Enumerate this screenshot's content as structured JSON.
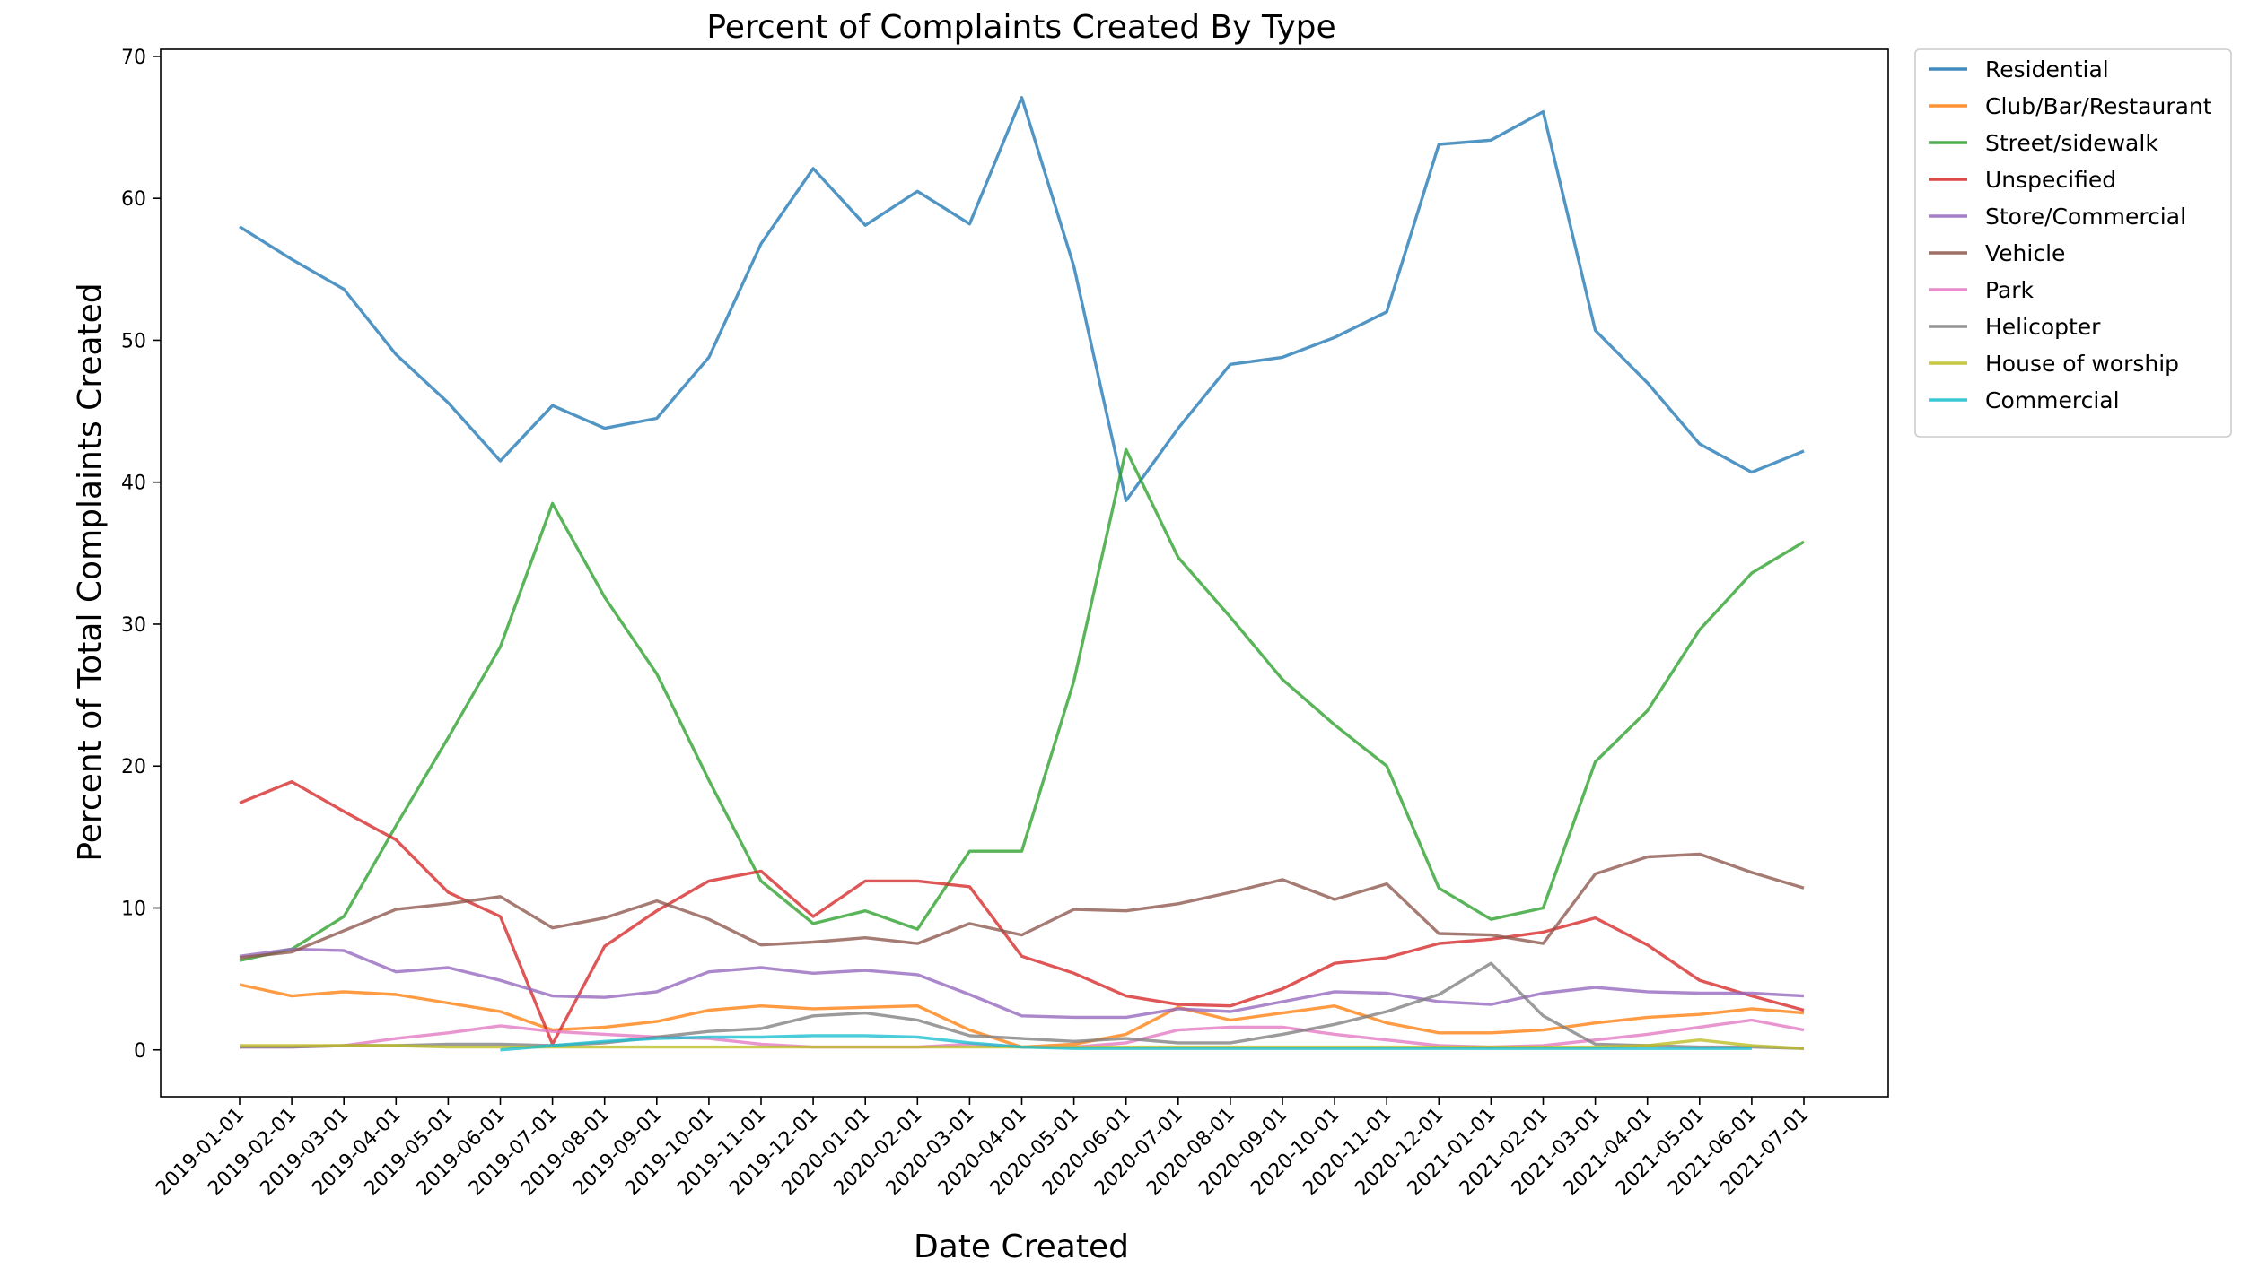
{
  "chart_data": {
    "type": "line",
    "title": "Percent of Complaints Created By Type",
    "xlabel": "Date Created",
    "ylabel": "Percent of Total Complaints Created",
    "ylim": [
      -3.3,
      70.5
    ],
    "yticks": [
      0,
      10,
      20,
      30,
      40,
      50,
      60,
      70
    ],
    "x": [
      "2019-01-01",
      "2019-02-01",
      "2019-03-01",
      "2019-04-01",
      "2019-05-01",
      "2019-06-01",
      "2019-07-01",
      "2019-08-01",
      "2019-09-01",
      "2019-10-01",
      "2019-11-01",
      "2019-12-01",
      "2020-01-01",
      "2020-02-01",
      "2020-03-01",
      "2020-04-01",
      "2020-05-01",
      "2020-06-01",
      "2020-07-01",
      "2020-08-01",
      "2020-09-01",
      "2020-10-01",
      "2020-11-01",
      "2020-12-01",
      "2021-01-01",
      "2021-02-01",
      "2021-03-01",
      "2021-04-01",
      "2021-05-01",
      "2021-06-01",
      "2021-07-01"
    ],
    "grid": false,
    "legend_position": "outside-top-right",
    "series": [
      {
        "name": "Residential",
        "color": "#1f77b4",
        "values": [
          58.0,
          55.7,
          53.6,
          49.0,
          45.6,
          41.5,
          45.4,
          43.8,
          44.5,
          48.8,
          56.8,
          62.1,
          58.1,
          60.5,
          58.2,
          67.1,
          55.2,
          38.7,
          43.8,
          48.3,
          48.8,
          50.2,
          52.0,
          63.8,
          64.1,
          66.1,
          50.7,
          47.0,
          42.7,
          40.7,
          42.2
        ]
      },
      {
        "name": "Club/Bar/Restaurant",
        "color": "#ff7f0e",
        "values": [
          4.6,
          3.8,
          4.1,
          3.9,
          3.3,
          2.7,
          1.4,
          1.6,
          2.0,
          2.8,
          3.1,
          2.9,
          3.0,
          3.1,
          1.4,
          0.2,
          0.4,
          1.1,
          3.0,
          2.1,
          2.6,
          3.1,
          1.9,
          1.2,
          1.2,
          1.4,
          1.9,
          2.3,
          2.5,
          2.9,
          2.6
        ]
      },
      {
        "name": "Street/sidewalk",
        "color": "#2ca02c",
        "values": [
          6.3,
          7.1,
          9.4,
          15.8,
          22.0,
          28.4,
          38.5,
          31.9,
          26.5,
          19.0,
          11.9,
          8.9,
          9.8,
          8.5,
          14.0,
          14.0,
          26.0,
          42.3,
          34.7,
          30.5,
          26.1,
          22.9,
          20.0,
          11.4,
          9.2,
          10.0,
          20.3,
          23.9,
          29.6,
          33.6,
          35.8
        ]
      },
      {
        "name": "Unspecified",
        "color": "#d62728",
        "values": [
          17.4,
          18.9,
          16.8,
          14.8,
          11.1,
          9.4,
          0.4,
          7.3,
          9.8,
          11.9,
          12.6,
          9.4,
          11.9,
          11.9,
          11.5,
          6.6,
          5.4,
          3.8,
          3.2,
          3.1,
          4.3,
          6.1,
          6.5,
          7.5,
          7.8,
          8.3,
          9.3,
          7.4,
          4.9,
          3.8,
          2.8
        ]
      },
      {
        "name": "Store/Commercial",
        "color": "#9467bd",
        "values": [
          6.6,
          7.1,
          7.0,
          5.5,
          5.8,
          4.9,
          3.8,
          3.7,
          4.1,
          5.5,
          5.8,
          5.4,
          5.6,
          5.3,
          3.9,
          2.4,
          2.3,
          2.3,
          2.9,
          2.7,
          3.4,
          4.1,
          4.0,
          3.4,
          3.2,
          4.0,
          4.4,
          4.1,
          4.0,
          4.0,
          3.8
        ]
      },
      {
        "name": "Vehicle",
        "color": "#8c564b",
        "values": [
          6.5,
          6.9,
          8.4,
          9.9,
          10.3,
          10.8,
          8.6,
          9.3,
          10.5,
          9.2,
          7.4,
          7.6,
          7.9,
          7.5,
          8.9,
          8.1,
          9.9,
          9.8,
          10.3,
          11.1,
          12.0,
          10.6,
          11.7,
          8.2,
          8.1,
          7.5,
          12.4,
          13.6,
          13.8,
          12.5,
          11.4
        ]
      },
      {
        "name": "Park",
        "color": "#e377c2",
        "values": [
          0.2,
          0.2,
          0.3,
          0.8,
          1.2,
          1.7,
          1.3,
          1.1,
          0.9,
          0.8,
          0.4,
          0.2,
          0.2,
          0.2,
          0.4,
          0.2,
          0.2,
          0.5,
          1.4,
          1.6,
          1.6,
          1.1,
          0.7,
          0.3,
          0.2,
          0.3,
          0.7,
          1.1,
          1.6,
          2.1,
          1.4
        ]
      },
      {
        "name": "Helicopter",
        "color": "#7f7f7f",
        "values": [
          0.2,
          0.2,
          0.3,
          0.3,
          0.4,
          0.4,
          0.3,
          0.5,
          0.9,
          1.3,
          1.5,
          2.4,
          2.6,
          2.1,
          1.0,
          0.8,
          0.6,
          0.8,
          0.5,
          0.5,
          1.1,
          1.8,
          2.7,
          3.9,
          6.1,
          2.4,
          0.4,
          0.3,
          0.2,
          0.2,
          0.1
        ]
      },
      {
        "name": "House of worship",
        "color": "#bcbd22",
        "values": [
          0.3,
          0.3,
          0.3,
          0.3,
          0.2,
          0.2,
          0.2,
          0.2,
          0.2,
          0.2,
          0.2,
          0.2,
          0.2,
          0.2,
          0.2,
          0.2,
          0.2,
          0.2,
          0.2,
          0.2,
          0.2,
          0.2,
          0.2,
          0.2,
          0.2,
          0.2,
          0.2,
          0.3,
          0.7,
          0.3,
          0.1
        ]
      },
      {
        "name": "Commercial",
        "color": "#17becf",
        "values": [
          null,
          null,
          null,
          null,
          null,
          0.0,
          0.3,
          0.6,
          0.8,
          0.9,
          0.9,
          1.0,
          1.0,
          0.9,
          0.5,
          0.2,
          0.1,
          0.1,
          0.1,
          0.1,
          0.1,
          0.1,
          0.1,
          0.1,
          0.1,
          0.1,
          0.1,
          0.1,
          0.1,
          0.1,
          null
        ]
      }
    ]
  }
}
